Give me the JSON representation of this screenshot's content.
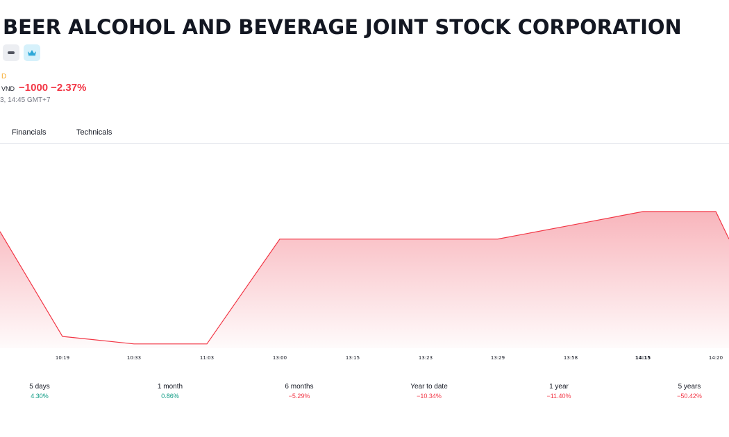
{
  "header": {
    "title": "BEER ALCOHOL AND BEVERAGE JOINT STOCK CORPORATION",
    "exchange_fragment": "D",
    "currency": "VND",
    "change": "−1000",
    "change_percent": "−2.37%",
    "timestamp": "3, 14:45 GMT+7"
  },
  "tabs": [
    {
      "label": "Financials"
    },
    {
      "label": "Technicals"
    }
  ],
  "chart_data": {
    "type": "area",
    "x": [
      "10:19",
      "10:33",
      "11:03",
      "13:00",
      "13:15",
      "13:23",
      "13:29",
      "13:58",
      "14:15",
      "14:20"
    ],
    "x_tick_bold": [
      "14:15"
    ],
    "line_color": "#f23645",
    "fill_color": "#f7a8b0",
    "relative_levels": [
      0.94,
      0.1,
      0.04,
      0.04,
      0.88,
      0.88,
      0.88,
      0.88,
      0.99,
      1.1,
      1.1,
      0.88
    ]
  },
  "performance": [
    {
      "label": "5 days",
      "value": "4.30%",
      "trend": "pos"
    },
    {
      "label": "1 month",
      "value": "0.86%",
      "trend": "pos"
    },
    {
      "label": "6 months",
      "value": "−5.29%",
      "trend": "neg"
    },
    {
      "label": "Year to date",
      "value": "−10.34%",
      "trend": "neg"
    },
    {
      "label": "1 year",
      "value": "−11.40%",
      "trend": "neg"
    },
    {
      "label": "5 years",
      "value": "−50.42%",
      "trend": "neg"
    }
  ],
  "colors": {
    "up": "#089981",
    "down": "#f23645",
    "accent": "#f5a623"
  }
}
